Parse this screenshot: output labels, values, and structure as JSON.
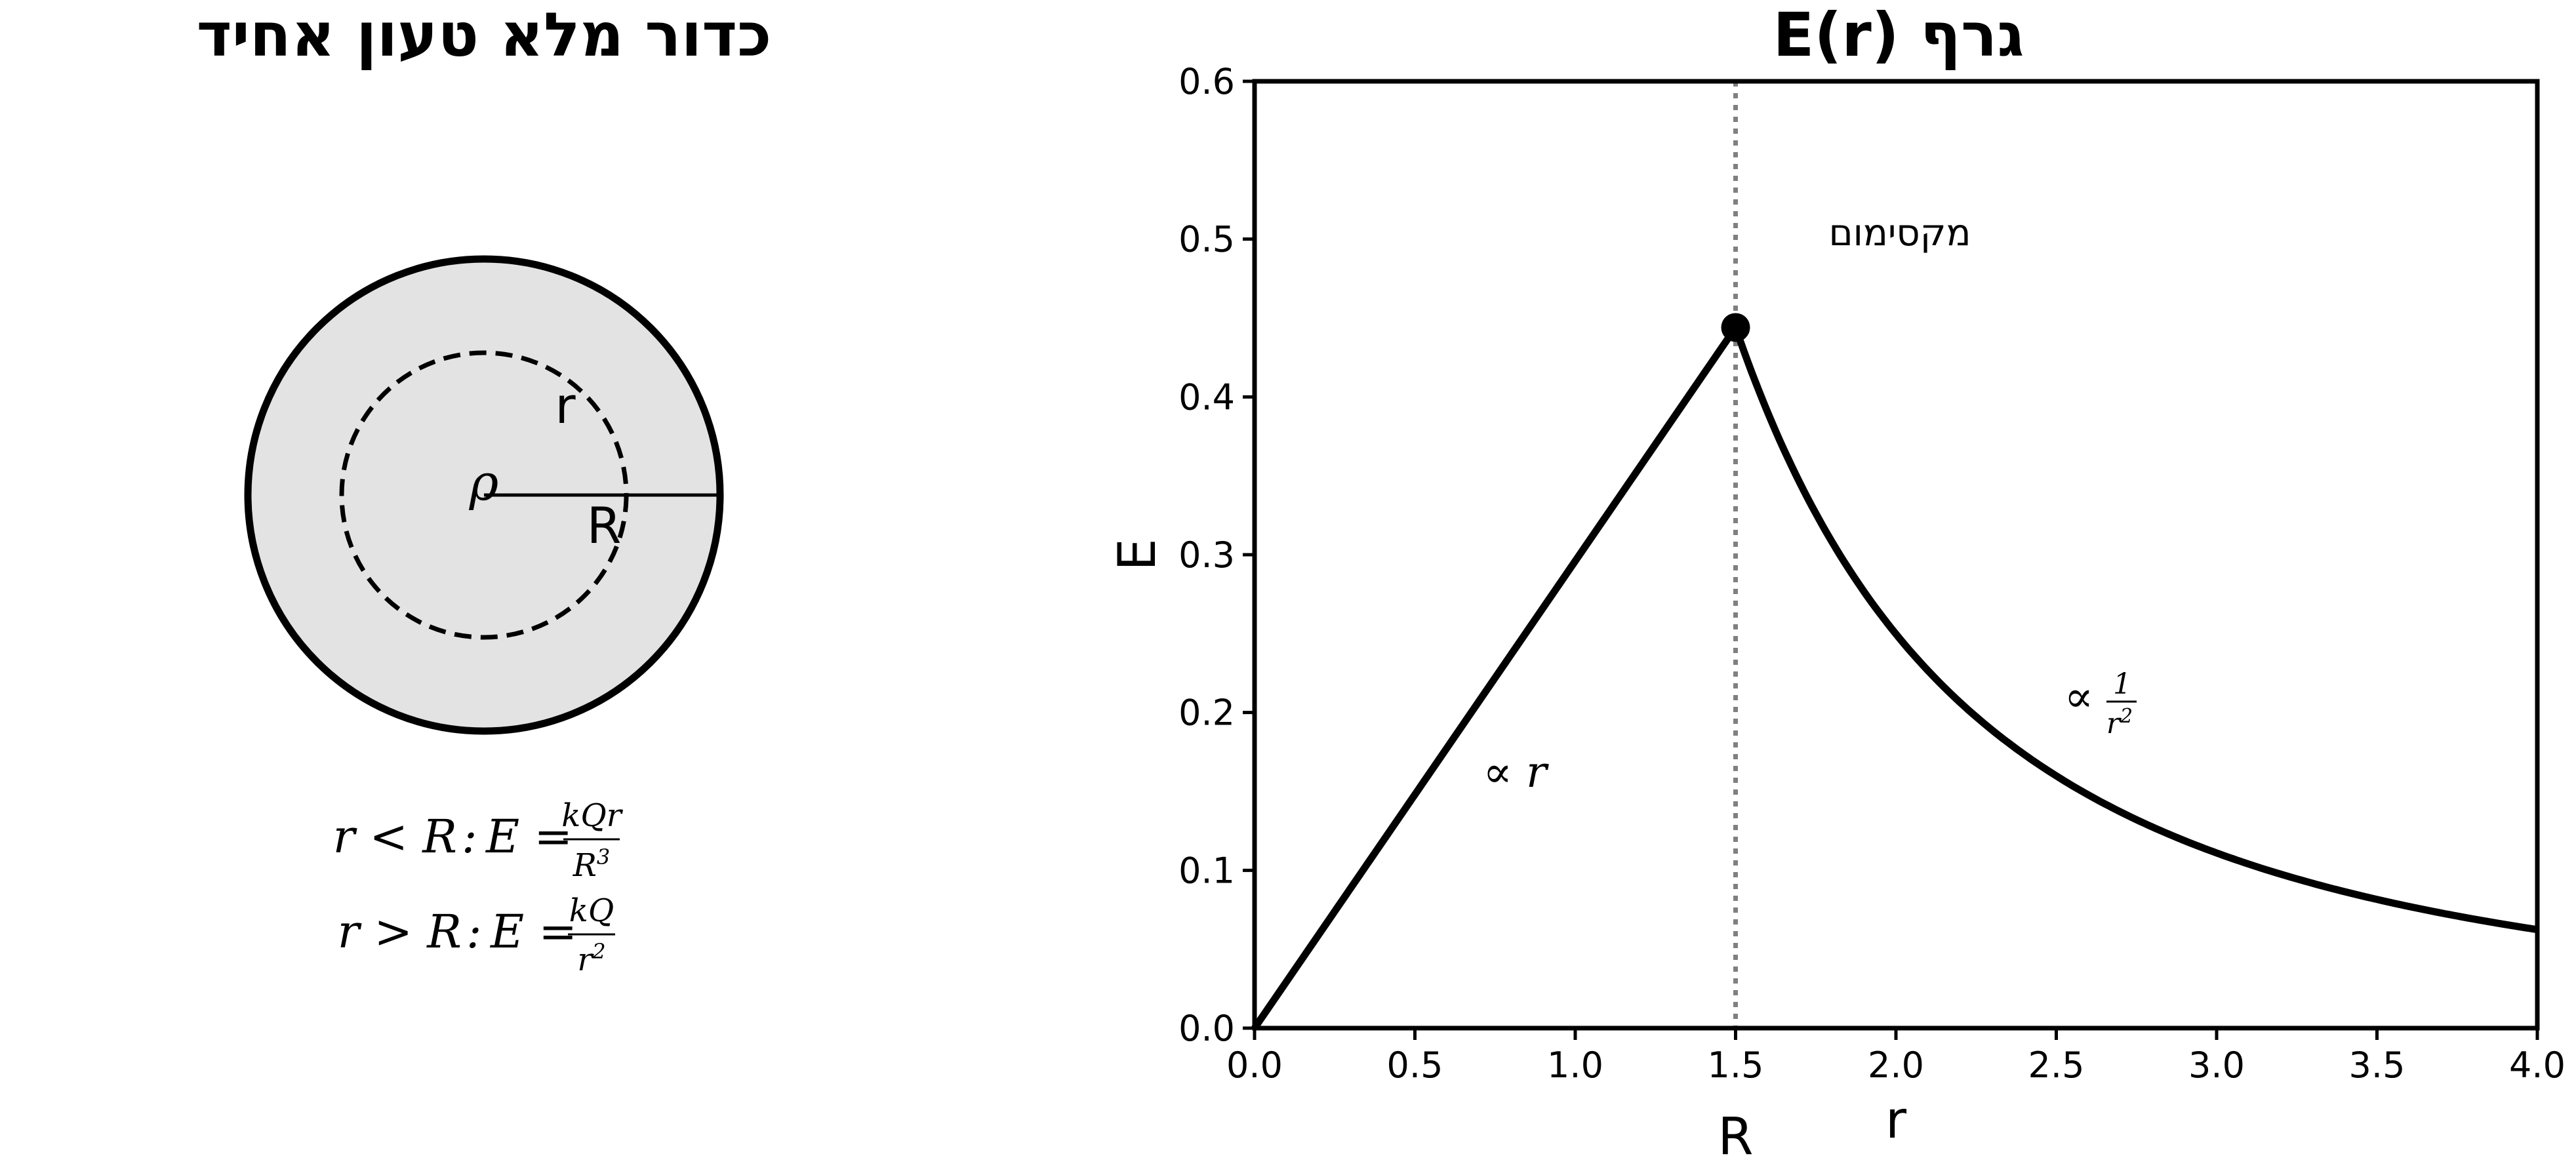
{
  "left_panel": {
    "title": "כדור מלא טעון אחיד",
    "labels": {
      "r": "r",
      "rho": "ρ",
      "R": "R"
    },
    "formula_inside": {
      "cond": "r < R",
      "lhs": "E =",
      "num": "kQr",
      "den_base": "R",
      "den_exp": "3"
    },
    "formula_outside": {
      "cond": "r > R",
      "lhs": "E =",
      "num": "kQ",
      "den_base": "r",
      "den_exp": "2"
    },
    "colors": {
      "sphere_fill": "#e3e3e3",
      "stroke": "#000000"
    }
  },
  "chart_data": {
    "type": "line",
    "title": "גרף E(r)",
    "xlabel": "r",
    "ylabel": "E",
    "xlim": [
      0.0,
      4.0
    ],
    "ylim": [
      0.0,
      0.6
    ],
    "xticks": [
      "0.0",
      "0.5",
      "1.0",
      "1.5",
      "2.0",
      "2.5",
      "3.0",
      "3.5",
      "4.0"
    ],
    "yticks": [
      "0.0",
      "0.1",
      "0.2",
      "0.3",
      "0.4",
      "0.5",
      "0.6"
    ],
    "R": 1.5,
    "R_label": "R",
    "E_max": 0.444,
    "inside": {
      "x": [
        0.0,
        1.5
      ],
      "y": [
        0.0,
        0.444
      ],
      "label": "∝ r"
    },
    "outside": {
      "x": [
        1.5,
        1.75,
        2.0,
        2.25,
        2.5,
        2.75,
        3.0,
        3.25,
        3.5,
        3.75,
        4.0
      ],
      "y": [
        0.444,
        0.327,
        0.25,
        0.198,
        0.16,
        0.132,
        0.111,
        0.095,
        0.082,
        0.071,
        0.0625
      ],
      "label_prefix": "∝",
      "label_num": "1",
      "label_den_base": "r",
      "label_den_exp": "2"
    },
    "max_point": {
      "x": 1.5,
      "y": 0.444
    },
    "max_annotation": "מקסימום",
    "grid": false,
    "colors": {
      "line": "#000000",
      "vline": "#808080"
    }
  }
}
